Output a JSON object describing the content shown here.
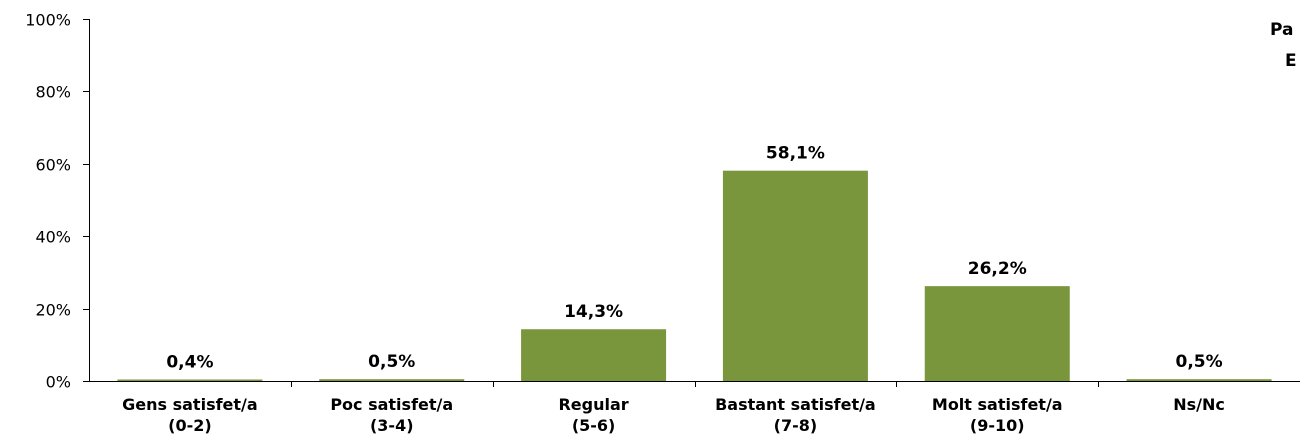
{
  "chart_data": {
    "type": "bar",
    "categories": [
      [
        "Gens satisfet/a",
        "(0-2)"
      ],
      [
        "Poc satisfet/a",
        "(3-4)"
      ],
      [
        "Regular",
        "(5-6)"
      ],
      [
        "Bastant satisfet/a",
        "(7-8)"
      ],
      [
        "Molt satisfet/a",
        "(9-10)"
      ],
      [
        "Ns/Nc",
        ""
      ]
    ],
    "values": [
      0.4,
      0.5,
      14.3,
      58.1,
      26.2,
      0.5
    ],
    "data_labels": [
      "0,4%",
      "0,5%",
      "14,3%",
      "58,1%",
      "26,2%",
      "0,5%"
    ],
    "ylim": [
      0,
      100
    ],
    "yticks": [
      0,
      20,
      40,
      60,
      80,
      100
    ],
    "ytick_labels": [
      "0%",
      "20%",
      "40%",
      "60%",
      "80%",
      "100%"
    ],
    "bar_color": "#7a963c",
    "corner_text": [
      "Pa",
      "E"
    ],
    "grid": false,
    "title": "",
    "xlabel": "",
    "ylabel": ""
  }
}
